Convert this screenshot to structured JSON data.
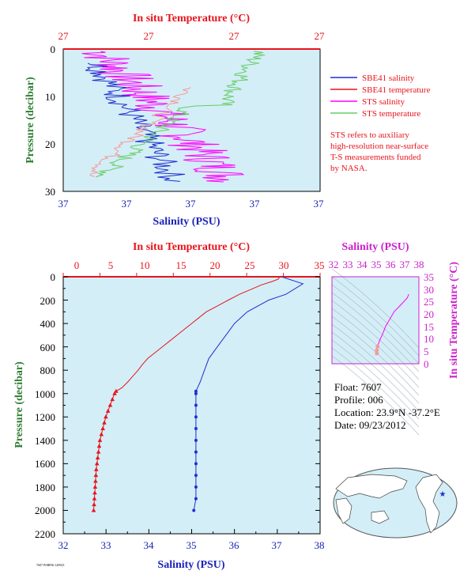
{
  "colors": {
    "plot_bg": "#d3eef7",
    "red": "#e8141c",
    "blue": "#1f2fd0",
    "magenta": "#ff00ff",
    "green": "#66cc66",
    "salmon": "#f59a9a",
    "axis_blue": "#1a23b8",
    "axis_magenta": "#cc22cc",
    "axis_green": "#2e7d32"
  },
  "top_plot": {
    "top_axis_title": "In situ Temperature (°C)",
    "top_ticks": [
      "27",
      "27",
      "27",
      "27"
    ],
    "bottom_axis_title": "Salinity (PSU)",
    "bottom_ticks": [
      "37",
      "37",
      "37",
      "37",
      "37"
    ],
    "left_axis_title": "Pressure (decibar)",
    "left_ticks": [
      "0",
      "10",
      "20",
      "30"
    ]
  },
  "legend": {
    "items": [
      {
        "label": "SBE41 salinity",
        "color": "#1f2fd0"
      },
      {
        "label": "SBE41 temperature",
        "color": "#e8141c"
      },
      {
        "label": "STS salinity",
        "color": "#ff00ff"
      },
      {
        "label": "STS temperature",
        "color": "#66cc66"
      }
    ],
    "note_lines": [
      "STS refers to auxiliary",
      "high-resolution near-surface",
      "T-S measurements funded",
      "by NASA."
    ]
  },
  "main_plot": {
    "top_axis_title": "In situ Temperature (°C)",
    "top_ticks": [
      "0",
      "5",
      "10",
      "15",
      "20",
      "25",
      "30",
      "35"
    ],
    "bottom_axis_title": "Salinity (PSU)",
    "bottom_ticks": [
      "32",
      "34",
      "36",
      "38"
    ],
    "bottom_ticks_all": [
      "32",
      "33",
      "34",
      "35",
      "36",
      "37",
      "38"
    ],
    "left_axis_title": "Pressure (decibar)",
    "left_ticks": [
      "0",
      "200",
      "400",
      "600",
      "800",
      "1000",
      "1200",
      "1400",
      "1600",
      "1800",
      "2000",
      "2200"
    ]
  },
  "ts_plot": {
    "top_axis_title": "Salinity (PSU)",
    "top_ticks": [
      "32",
      "33",
      "34",
      "35",
      "36",
      "37",
      "38"
    ],
    "right_axis_title": "In situ Temperature (°C)",
    "right_ticks": [
      "35",
      "30",
      "25",
      "20",
      "15",
      "10",
      "5",
      "0"
    ]
  },
  "float_info": {
    "float": "Float:  7607",
    "profile": "Profile:  006",
    "location": "Location:  23.9°N  -37.2°E",
    "date": "Date:  09/23/2012"
  },
  "footer_code": "7607 PSBF06 120923",
  "chart_data": [
    {
      "type": "line",
      "title": "",
      "xlabel": "Salinity (PSU)",
      "ylabel": "Pressure (decibar)",
      "x2label": "In situ Temperature (°C)",
      "xlim": [
        32,
        38
      ],
      "x2lim": [
        0,
        35
      ],
      "ylim": [
        2200,
        0
      ],
      "series": [
        {
          "name": "Temperature",
          "axis": "x2",
          "points": [
            [
              29.5,
              0
            ],
            [
              29.3,
              20
            ],
            [
              28.5,
              40
            ],
            [
              27.0,
              70
            ],
            [
              25.5,
              110
            ],
            [
              24.0,
              150
            ],
            [
              22.5,
              200
            ],
            [
              21.0,
              250
            ],
            [
              19.5,
              300
            ],
            [
              18.5,
              350
            ],
            [
              17.5,
              400
            ],
            [
              16.5,
              450
            ],
            [
              15.5,
              500
            ],
            [
              14.5,
              550
            ],
            [
              13.5,
              600
            ],
            [
              12.5,
              650
            ],
            [
              11.5,
              700
            ],
            [
              10.8,
              750
            ],
            [
              10.2,
              800
            ],
            [
              9.5,
              850
            ],
            [
              8.8,
              900
            ],
            [
              8.0,
              950
            ],
            [
              7.2,
              980
            ],
            [
              7.0,
              1000
            ],
            [
              6.7,
              1050
            ],
            [
              6.4,
              1100
            ],
            [
              6.1,
              1150
            ],
            [
              5.8,
              1200
            ],
            [
              5.6,
              1250
            ],
            [
              5.4,
              1300
            ],
            [
              5.2,
              1350
            ],
            [
              5.0,
              1400
            ],
            [
              4.9,
              1450
            ],
            [
              4.8,
              1500
            ],
            [
              4.7,
              1550
            ],
            [
              4.6,
              1600
            ],
            [
              4.5,
              1650
            ],
            [
              4.45,
              1700
            ],
            [
              4.4,
              1750
            ],
            [
              4.35,
              1800
            ],
            [
              4.3,
              1850
            ],
            [
              4.25,
              1900
            ],
            [
              4.2,
              1950
            ],
            [
              4.15,
              2000
            ]
          ]
        },
        {
          "name": "Salinity",
          "axis": "x",
          "points": [
            [
              37.1,
              0
            ],
            [
              37.6,
              60
            ],
            [
              37.2,
              150
            ],
            [
              36.8,
              200
            ],
            [
              36.3,
              300
            ],
            [
              36.0,
              400
            ],
            [
              35.8,
              500
            ],
            [
              35.6,
              600
            ],
            [
              35.4,
              700
            ],
            [
              35.3,
              800
            ],
            [
              35.2,
              900
            ],
            [
              35.1,
              980
            ],
            [
              35.1,
              1000
            ],
            [
              35.1,
              1100
            ],
            [
              35.1,
              1200
            ],
            [
              35.1,
              1300
            ],
            [
              35.1,
              1400
            ],
            [
              35.1,
              1500
            ],
            [
              35.1,
              1600
            ],
            [
              35.1,
              1700
            ],
            [
              35.1,
              1800
            ],
            [
              35.1,
              1900
            ],
            [
              35.05,
              2000
            ]
          ]
        }
      ]
    },
    {
      "type": "line",
      "title": "",
      "xlabel": "Salinity (PSU)",
      "ylabel": "In situ Temperature (°C)",
      "xlim": [
        32,
        38
      ],
      "ylim": [
        0,
        35
      ],
      "series": [
        {
          "name": "T-S",
          "points": [
            [
              35.1,
              4.2
            ],
            [
              35.1,
              5.5
            ],
            [
              35.15,
              7.0
            ],
            [
              35.3,
              9.5
            ],
            [
              35.5,
              12.0
            ],
            [
              35.7,
              15.0
            ],
            [
              36.0,
              18.0
            ],
            [
              36.3,
              21.0
            ],
            [
              36.8,
              24.0
            ],
            [
              37.2,
              26.5
            ],
            [
              37.3,
              28.0
            ]
          ]
        }
      ]
    }
  ]
}
